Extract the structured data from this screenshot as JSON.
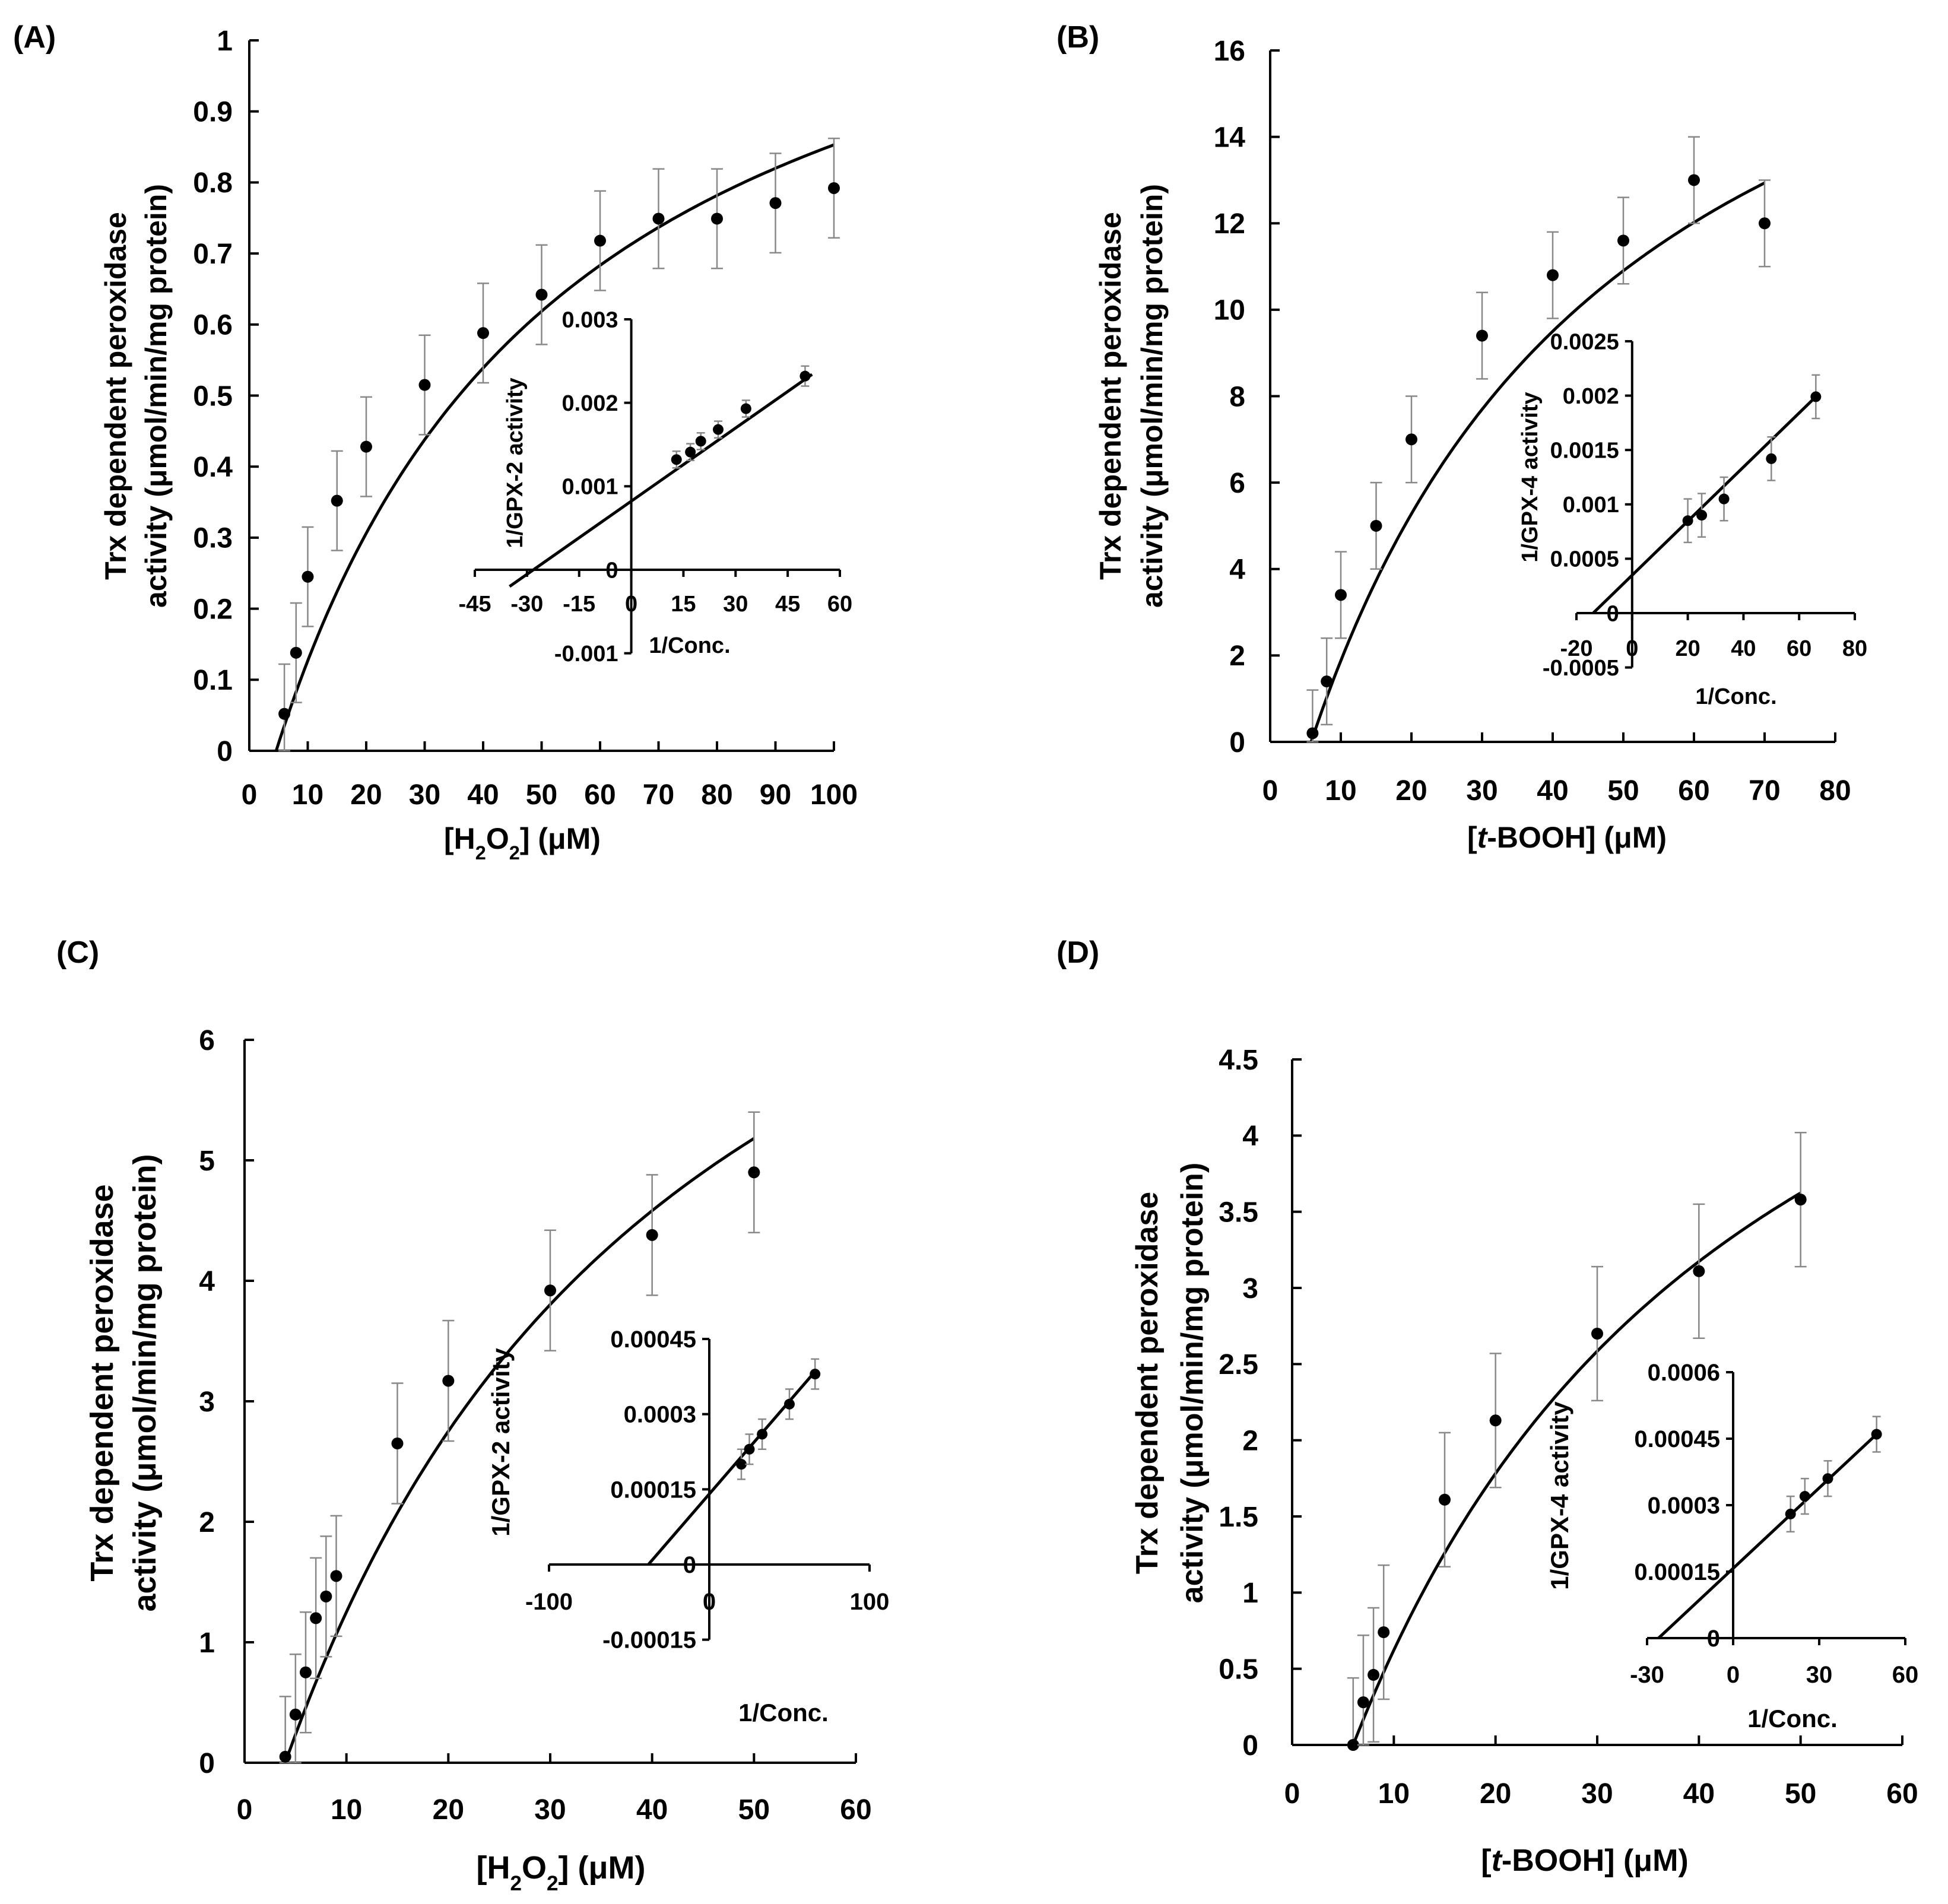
{
  "figure": {
    "panels": [
      "(A)",
      "(B)",
      "(C)",
      "(D)"
    ]
  },
  "chart_data": [
    {
      "panel": "(A)",
      "type": "scatter",
      "xlabel_main": "[H",
      "xlabel_sub1": "2",
      "xlabel_mid": "O",
      "xlabel_sub2": "2",
      "xlabel_tail": "]  (μM)",
      "ylabel_line1": "Trx dependent peroxidase",
      "ylabel_line2": "activity (μmol/min/mg protein)",
      "xlim": [
        0,
        100
      ],
      "ylim": [
        0,
        1
      ],
      "xticks": [
        "0",
        "10",
        "20",
        "30",
        "40",
        "50",
        "60",
        "70",
        "80",
        "90",
        "100"
      ],
      "yticks": [
        "0",
        "0.1",
        "0.2",
        "0.3",
        "0.4",
        "0.5",
        "0.6",
        "0.7",
        "0.8",
        "0.9",
        "1"
      ],
      "x": [
        6,
        8,
        10,
        15,
        20,
        30,
        40,
        50,
        60,
        70,
        80,
        90,
        100
      ],
      "y": [
        0.052,
        0.138,
        0.245,
        0.352,
        0.428,
        0.515,
        0.588,
        0.642,
        0.718,
        0.749,
        0.749,
        0.771,
        0.792
      ],
      "err": [
        0.07,
        0.07,
        0.07,
        0.07,
        0.07,
        0.07,
        0.07,
        0.07,
        0.07,
        0.07,
        0.07,
        0.07,
        0.07
      ],
      "fit": {
        "Vmax": 1.3,
        "Km": 50,
        "x0": 4.6
      },
      "inset": {
        "ylabel": "1/GPX-2 activity",
        "xlabel": "1/Conc.",
        "xlim": [
          -45,
          60
        ],
        "ylim": [
          -0.001,
          0.003
        ],
        "xticks": [
          "-45",
          "-30",
          "-15",
          "0",
          "15",
          "30",
          "45",
          "60"
        ],
        "yticks": [
          "-0.001",
          "0",
          "0.001",
          "0.002",
          "0.003"
        ],
        "x": [
          13,
          17,
          20,
          25,
          33,
          50
        ],
        "y": [
          0.00132,
          0.00141,
          0.00154,
          0.00168,
          0.00193,
          0.00232
        ],
        "err": [
          0.0001,
          0.0001,
          0.0001,
          0.0001,
          0.0001,
          0.00012
        ],
        "line": {
          "x0": -35,
          "y0": -0.0002,
          "x1": 52,
          "y1": 0.00234
        }
      }
    },
    {
      "panel": "(B)",
      "type": "scatter",
      "xlabel_pre": "[",
      "xlabel_ital": "t",
      "xlabel_tail": "-BOOH]  (μM)",
      "ylabel_line1": "Trx dependent peroxidase",
      "ylabel_line2": "activity (μmol/min/mg protein)",
      "xlim": [
        0,
        80
      ],
      "ylim": [
        0,
        16
      ],
      "xticks": [
        "0",
        "10",
        "20",
        "30",
        "40",
        "50",
        "60",
        "70",
        "80"
      ],
      "yticks": [
        "0",
        "2",
        "4",
        "6",
        "8",
        "10",
        "12",
        "14",
        "16"
      ],
      "x": [
        6,
        8,
        10,
        15,
        20,
        30,
        40,
        50,
        60,
        70
      ],
      "y": [
        0.2,
        1.4,
        3.4,
        5.0,
        7.0,
        9.4,
        10.8,
        11.6,
        13.0,
        12.0
      ],
      "err": [
        1.0,
        1.0,
        1.0,
        1.0,
        1.0,
        1.0,
        1.0,
        1.0,
        1.0,
        1.0
      ],
      "fit": {
        "Vmax": 22,
        "Km": 45,
        "x0": 5.8,
        "xend": 70
      },
      "inset": {
        "ylabel": "1/GPX-4 activity",
        "xlabel": "1/Conc.",
        "xlim": [
          -20,
          80
        ],
        "ylim": [
          -0.0005,
          0.0025
        ],
        "xticks": [
          "-20",
          "0",
          "20",
          "40",
          "60",
          "80"
        ],
        "yticks": [
          "-0.0005",
          "0",
          "0.0005",
          "0.001",
          "0.0015",
          "0.002",
          "0.0025"
        ],
        "x": [
          20,
          25,
          33,
          50,
          66
        ],
        "y": [
          0.00085,
          0.0009,
          0.00105,
          0.00142,
          0.00199
        ],
        "err": [
          0.0002,
          0.0002,
          0.0002,
          0.0002,
          0.0002
        ],
        "line": {
          "x0": -14,
          "y0": 0,
          "x1": 66,
          "y1": 0.00199
        }
      }
    },
    {
      "panel": "(C)",
      "type": "scatter",
      "xlabel_main": "[H",
      "xlabel_sub1": "2",
      "xlabel_mid": "O",
      "xlabel_sub2": "2",
      "xlabel_tail": "]  (μM)",
      "ylabel_line1": "Trx dependent peroxidase",
      "ylabel_line2": "activity (μmol/min/mg protein)",
      "xlim": [
        0,
        60
      ],
      "ylim": [
        0,
        6
      ],
      "xticks": [
        "0",
        "10",
        "20",
        "30",
        "40",
        "50",
        "60"
      ],
      "yticks": [
        "0",
        "1",
        "2",
        "3",
        "4",
        "5",
        "6"
      ],
      "x": [
        4,
        5,
        6,
        7,
        8,
        9,
        15,
        20,
        30,
        40,
        50
      ],
      "y": [
        0.05,
        0.4,
        0.75,
        1.2,
        1.38,
        1.55,
        2.65,
        3.17,
        3.92,
        4.38,
        4.9
      ],
      "err": [
        0.5,
        0.5,
        0.5,
        0.5,
        0.5,
        0.5,
        0.5,
        0.5,
        0.5,
        0.5,
        0.5
      ],
      "fit": {
        "Vmax": 9.8,
        "Km": 41,
        "x0": 4.0,
        "xend": 50
      },
      "inset": {
        "ylabel": "1/GPX-2 activity",
        "xlabel": "1/Conc.",
        "xlim": [
          -100,
          100
        ],
        "ylim": [
          -0.00015,
          0.00045
        ],
        "xticks": [
          "-100",
          "0",
          "100"
        ],
        "yticks": [
          "-0.00015",
          "0",
          "0.00015",
          "0.0003",
          "0.00045"
        ],
        "x": [
          20,
          25,
          33,
          50,
          66
        ],
        "y": [
          0.0002,
          0.00023,
          0.00026,
          0.00032,
          0.00038
        ],
        "err": [
          3e-05,
          3e-05,
          3e-05,
          3e-05,
          3e-05
        ],
        "line": {
          "x0": -38,
          "y0": 0,
          "x1": 66,
          "y1": 0.000385
        }
      }
    },
    {
      "panel": "(D)",
      "type": "scatter",
      "xlabel_pre": "[",
      "xlabel_ital": "t",
      "xlabel_tail": "-BOOH]  (μM)",
      "ylabel_line1": "Trx dependent peroxidase",
      "ylabel_line2": "activity (μmol/min/mg protein)",
      "xlim": [
        0,
        60
      ],
      "ylim": [
        0,
        4.5
      ],
      "xticks": [
        "0",
        "10",
        "20",
        "30",
        "40",
        "50",
        "60"
      ],
      "yticks": [
        "0",
        "0.5",
        "1",
        "1.5",
        "2",
        "2.5",
        "3",
        "3.5",
        "4",
        "4.5"
      ],
      "x": [
        6,
        7,
        8,
        9,
        15,
        20,
        30,
        40,
        50
      ],
      "y": [
        0.0,
        0.28,
        0.46,
        0.74,
        1.61,
        2.13,
        2.7,
        3.11,
        3.58
      ],
      "err": [
        0.44,
        0.44,
        0.44,
        0.44,
        0.44,
        0.44,
        0.44,
        0.44,
        0.44
      ],
      "fit": {
        "Vmax": 7.0,
        "Km": 41,
        "x0": 6.0,
        "xend": 50
      },
      "inset": {
        "ylabel": "1/GPX-4 activity",
        "xlabel": "1/Conc.",
        "xlim": [
          -30,
          60
        ],
        "ylim": [
          0,
          0.0006
        ],
        "xticks": [
          "-30",
          "0",
          "30",
          "60"
        ],
        "yticks": [
          "0",
          "0.00015",
          "0.0003",
          "0.00045",
          "0.0006"
        ],
        "x": [
          20,
          25,
          33,
          50
        ],
        "y": [
          0.00028,
          0.00032,
          0.00036,
          0.00046
        ],
        "err": [
          4e-05,
          4e-05,
          4e-05,
          4e-05
        ],
        "line": {
          "x0": -26,
          "y0": 0,
          "x1": 50,
          "y1": 0.00046
        }
      }
    }
  ]
}
